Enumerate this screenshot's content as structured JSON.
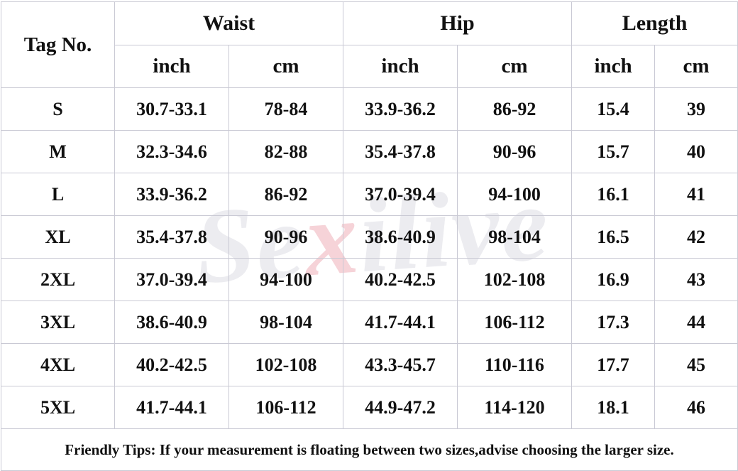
{
  "watermark": {
    "prefix": "Se",
    "accent": "x",
    "suffix": "ilive"
  },
  "table": {
    "tag_header": "Tag No.",
    "groups": [
      "Waist",
      "Hip",
      "Length"
    ],
    "units": [
      "inch",
      "cm",
      "inch",
      "cm",
      "inch",
      "cm"
    ],
    "rows": [
      [
        "S",
        "30.7-33.1",
        "78-84",
        "33.9-36.2",
        "86-92",
        "15.4",
        "39"
      ],
      [
        "M",
        "32.3-34.6",
        "82-88",
        "35.4-37.8",
        "90-96",
        "15.7",
        "40"
      ],
      [
        "L",
        "33.9-36.2",
        "86-92",
        "37.0-39.4",
        "94-100",
        "16.1",
        "41"
      ],
      [
        "XL",
        "35.4-37.8",
        "90-96",
        "38.6-40.9",
        "98-104",
        "16.5",
        "42"
      ],
      [
        "2XL",
        "37.0-39.4",
        "94-100",
        "40.2-42.5",
        "102-108",
        "16.9",
        "43"
      ],
      [
        "3XL",
        "38.6-40.9",
        "98-104",
        "41.7-44.1",
        "106-112",
        "17.3",
        "44"
      ],
      [
        "4XL",
        "40.2-42.5",
        "102-108",
        "43.3-45.7",
        "110-116",
        "17.7",
        "45"
      ],
      [
        "5XL",
        "41.7-44.1",
        "106-112",
        "44.9-47.2",
        "114-120",
        "18.1",
        "46"
      ]
    ],
    "tips": "Friendly Tips: If your measurement is floating between two sizes,advise choosing the larger size."
  },
  "colors": {
    "tips_text": "#e8141e",
    "grid_line": "#c9c9d4",
    "watermark": "#ececf0",
    "watermark_accent": "#f6d3d8"
  }
}
